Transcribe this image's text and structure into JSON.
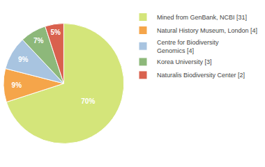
{
  "chart_data": {
    "type": "pie",
    "categories": [
      "Mined from GenBank, NCBI [31]",
      "Natural History Museum, London [4]",
      "Centre for Biodiversity\nGenomics [4]",
      "Korea University [3]",
      "Naturalis Biodiversity Center [2]"
    ],
    "values": [
      70,
      9,
      9,
      7,
      5
    ],
    "value_labels": [
      "70%",
      "9%",
      "9%",
      "7%",
      "5%"
    ],
    "colors": [
      "#d4e57a",
      "#f5a54a",
      "#a8c4e0",
      "#8db87a",
      "#d9614e"
    ],
    "data_labels": true,
    "legend": "upper right"
  }
}
